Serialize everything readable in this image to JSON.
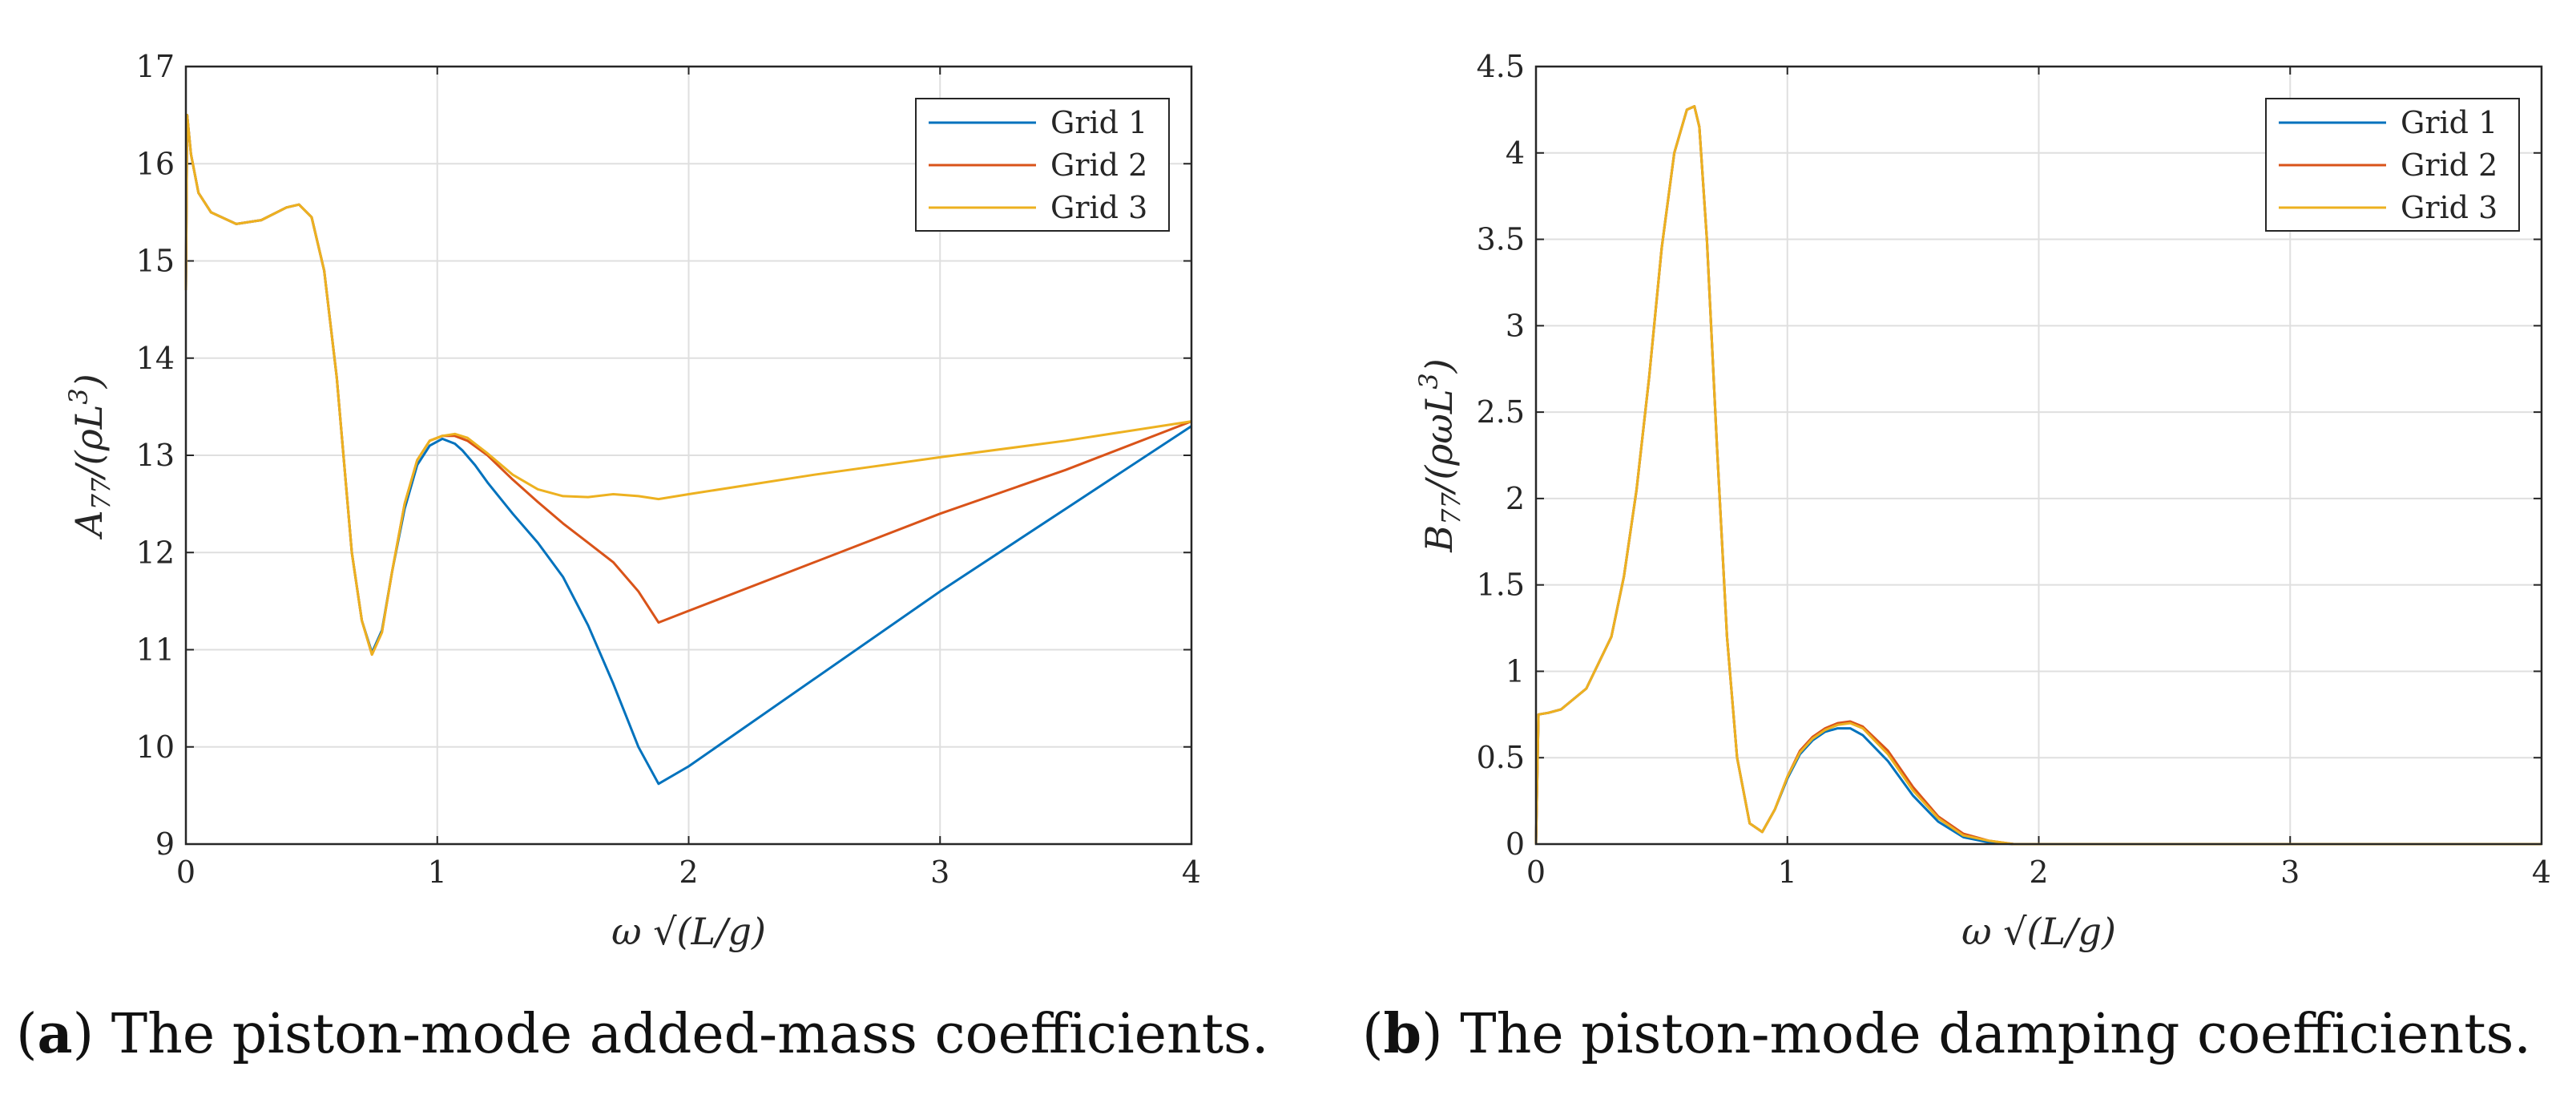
{
  "chart_data": [
    {
      "type": "line",
      "panel_id": "a",
      "ylabel": "A77/(ρL³)",
      "xlabel": "ω √(L/g)",
      "xlim": [
        0,
        4
      ],
      "ylim": [
        9,
        17
      ],
      "xticks": [
        "0",
        "1",
        "2",
        "3",
        "4"
      ],
      "yticks": [
        "9",
        "10",
        "11",
        "12",
        "13",
        "14",
        "15",
        "16",
        "17"
      ],
      "grid": true,
      "legend_position": "top-right",
      "series": [
        {
          "name": "Grid 1",
          "color": "#0072BD",
          "x": [
            0,
            0.005,
            0.02,
            0.05,
            0.1,
            0.2,
            0.3,
            0.4,
            0.45,
            0.5,
            0.55,
            0.6,
            0.63,
            0.66,
            0.7,
            0.74,
            0.78,
            0.82,
            0.87,
            0.92,
            0.97,
            1.02,
            1.07,
            1.1,
            1.15,
            1.2,
            1.3,
            1.4,
            1.5,
            1.6,
            1.7,
            1.8,
            1.88,
            2.0,
            2.5,
            3.0,
            3.5,
            4.0
          ],
          "y": [
            14.7,
            16.5,
            16.1,
            15.7,
            15.5,
            15.38,
            15.42,
            15.55,
            15.58,
            15.45,
            14.9,
            13.8,
            12.9,
            12.0,
            11.3,
            10.97,
            11.2,
            11.8,
            12.45,
            12.9,
            13.1,
            13.17,
            13.12,
            13.05,
            12.9,
            12.72,
            12.4,
            12.1,
            11.75,
            11.25,
            10.65,
            10.0,
            9.62,
            9.8,
            10.7,
            11.6,
            12.45,
            13.3
          ]
        },
        {
          "name": "Grid 2",
          "color": "#D95319",
          "x": [
            0,
            0.005,
            0.02,
            0.05,
            0.1,
            0.2,
            0.3,
            0.4,
            0.45,
            0.5,
            0.55,
            0.6,
            0.63,
            0.66,
            0.7,
            0.74,
            0.78,
            0.82,
            0.87,
            0.92,
            0.97,
            1.02,
            1.07,
            1.12,
            1.2,
            1.3,
            1.4,
            1.5,
            1.6,
            1.7,
            1.8,
            1.88,
            2.0,
            2.5,
            3.0,
            3.5,
            4.0
          ],
          "y": [
            14.7,
            16.5,
            16.1,
            15.7,
            15.5,
            15.38,
            15.42,
            15.55,
            15.58,
            15.45,
            14.9,
            13.8,
            12.9,
            12.0,
            11.3,
            10.95,
            11.18,
            11.8,
            12.5,
            12.95,
            13.15,
            13.2,
            13.2,
            13.15,
            13.0,
            12.75,
            12.52,
            12.3,
            12.1,
            11.9,
            11.6,
            11.28,
            11.4,
            11.9,
            12.4,
            12.85,
            13.35
          ]
        },
        {
          "name": "Grid 3",
          "color": "#EDB120",
          "x": [
            0,
            0.005,
            0.02,
            0.05,
            0.1,
            0.2,
            0.3,
            0.4,
            0.45,
            0.5,
            0.55,
            0.6,
            0.63,
            0.66,
            0.7,
            0.74,
            0.78,
            0.82,
            0.87,
            0.92,
            0.97,
            1.02,
            1.07,
            1.12,
            1.2,
            1.3,
            1.4,
            1.5,
            1.6,
            1.7,
            1.8,
            1.88,
            2.0,
            2.5,
            3.0,
            3.5,
            4.0
          ],
          "y": [
            14.7,
            16.5,
            16.1,
            15.7,
            15.5,
            15.38,
            15.42,
            15.55,
            15.58,
            15.45,
            14.9,
            13.8,
            12.9,
            12.0,
            11.3,
            10.95,
            11.18,
            11.8,
            12.5,
            12.95,
            13.15,
            13.2,
            13.22,
            13.18,
            13.02,
            12.8,
            12.65,
            12.58,
            12.57,
            12.6,
            12.58,
            12.55,
            12.6,
            12.8,
            12.98,
            13.15,
            13.35
          ]
        }
      ]
    },
    {
      "type": "line",
      "panel_id": "b",
      "ylabel": "B77/(ρωL³)",
      "xlabel": "ω √(L/g)",
      "xlim": [
        0,
        4
      ],
      "ylim": [
        0,
        4.5
      ],
      "xticks": [
        "0",
        "1",
        "2",
        "3",
        "4"
      ],
      "yticks": [
        "0",
        "0.5",
        "1",
        "1.5",
        "2",
        "2.5",
        "3",
        "3.5",
        "4",
        "4.5"
      ],
      "grid": true,
      "legend_position": "top-right",
      "series": [
        {
          "name": "Grid 1",
          "color": "#0072BD",
          "x": [
            0,
            0.01,
            0.05,
            0.1,
            0.2,
            0.3,
            0.35,
            0.4,
            0.45,
            0.5,
            0.55,
            0.6,
            0.63,
            0.65,
            0.68,
            0.72,
            0.76,
            0.8,
            0.85,
            0.9,
            0.95,
            1.0,
            1.05,
            1.1,
            1.15,
            1.2,
            1.25,
            1.3,
            1.4,
            1.5,
            1.6,
            1.7,
            1.8,
            1.9,
            2.0,
            3.0,
            4.0
          ],
          "y": [
            0,
            0.75,
            0.76,
            0.78,
            0.9,
            1.2,
            1.55,
            2.05,
            2.7,
            3.45,
            4.0,
            4.25,
            4.27,
            4.15,
            3.5,
            2.3,
            1.2,
            0.5,
            0.12,
            0.07,
            0.2,
            0.38,
            0.52,
            0.6,
            0.65,
            0.67,
            0.67,
            0.63,
            0.48,
            0.28,
            0.13,
            0.04,
            0.01,
            0.0,
            0.0,
            0.0,
            0.0
          ]
        },
        {
          "name": "Grid 2",
          "color": "#D95319",
          "x": [
            0,
            0.01,
            0.05,
            0.1,
            0.2,
            0.3,
            0.35,
            0.4,
            0.45,
            0.5,
            0.55,
            0.6,
            0.63,
            0.65,
            0.68,
            0.72,
            0.76,
            0.8,
            0.85,
            0.9,
            0.95,
            1.0,
            1.05,
            1.1,
            1.15,
            1.2,
            1.25,
            1.3,
            1.4,
            1.5,
            1.6,
            1.7,
            1.8,
            1.9,
            2.0,
            3.0,
            4.0
          ],
          "y": [
            0,
            0.75,
            0.76,
            0.78,
            0.9,
            1.2,
            1.55,
            2.05,
            2.7,
            3.45,
            4.0,
            4.25,
            4.27,
            4.15,
            3.5,
            2.3,
            1.2,
            0.5,
            0.12,
            0.07,
            0.2,
            0.39,
            0.54,
            0.62,
            0.67,
            0.7,
            0.71,
            0.68,
            0.54,
            0.33,
            0.16,
            0.06,
            0.02,
            0.0,
            0.0,
            0.0,
            0.0
          ]
        },
        {
          "name": "Grid 3",
          "color": "#EDB120",
          "x": [
            0,
            0.01,
            0.05,
            0.1,
            0.2,
            0.3,
            0.35,
            0.4,
            0.45,
            0.5,
            0.55,
            0.6,
            0.63,
            0.65,
            0.68,
            0.72,
            0.76,
            0.8,
            0.85,
            0.9,
            0.95,
            1.0,
            1.05,
            1.1,
            1.15,
            1.2,
            1.25,
            1.3,
            1.4,
            1.5,
            1.6,
            1.7,
            1.8,
            1.9,
            2.0,
            3.0,
            4.0
          ],
          "y": [
            0,
            0.75,
            0.76,
            0.78,
            0.9,
            1.2,
            1.55,
            2.05,
            2.7,
            3.45,
            4.0,
            4.25,
            4.27,
            4.15,
            3.5,
            2.3,
            1.2,
            0.5,
            0.12,
            0.07,
            0.2,
            0.39,
            0.53,
            0.61,
            0.66,
            0.69,
            0.7,
            0.67,
            0.52,
            0.31,
            0.15,
            0.05,
            0.02,
            0.0,
            0.0,
            0.0,
            0.0
          ]
        }
      ]
    }
  ],
  "captions": [
    {
      "label": "a",
      "text": ") The piston-mode added-mass coefficients."
    },
    {
      "label": "b",
      "text": ") The piston-mode damping coefficients."
    }
  ]
}
